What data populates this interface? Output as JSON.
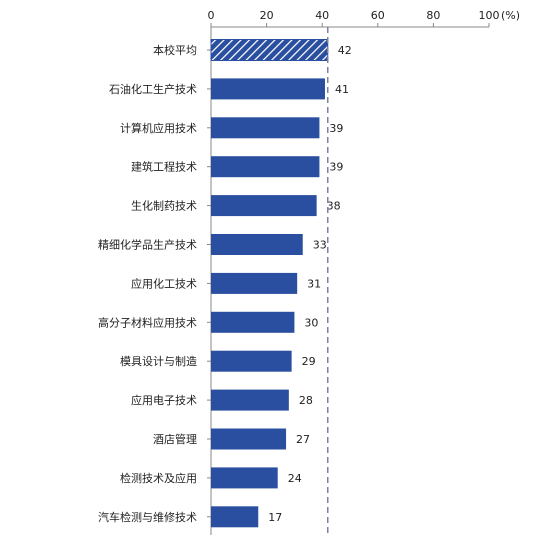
{
  "chart_data": {
    "type": "bar",
    "orientation": "horizontal",
    "categories": [
      "本校平均",
      "石油化工生产技术",
      "计算机应用技术",
      "建筑工程技术",
      "生化制药技术",
      "精细化学品生产技术",
      "应用化工技术",
      "高分子材料应用技术",
      "模具设计与制造",
      "应用电子技术",
      "酒店管理",
      "检测技术及应用",
      "汽车检测与维修技术"
    ],
    "values": [
      42,
      41,
      39,
      39,
      38,
      33,
      31,
      30,
      29,
      28,
      27,
      24,
      17
    ],
    "value_labels": [
      "42",
      "41",
      "39",
      "39",
      "38",
      "33",
      "31",
      "30",
      "29",
      "28",
      "27",
      "24",
      "17"
    ],
    "highlight_index": 0,
    "reference_line": 42,
    "x_axis": {
      "position": "top",
      "min": 0,
      "max": 100,
      "ticks": [
        0,
        20,
        40,
        60,
        80,
        100
      ],
      "tick_labels": [
        "0",
        "20",
        "40",
        "60",
        "80",
        "100"
      ],
      "unit_label": "(%)"
    },
    "grid": false,
    "legend": "none",
    "colors": {
      "bar": "#2b4fa0",
      "bar_highlight_fill": "#2b4fa0",
      "bar_highlight_stripe": "#ffffff",
      "axis": "#888888",
      "reference_line": "#7f7f9f"
    }
  }
}
